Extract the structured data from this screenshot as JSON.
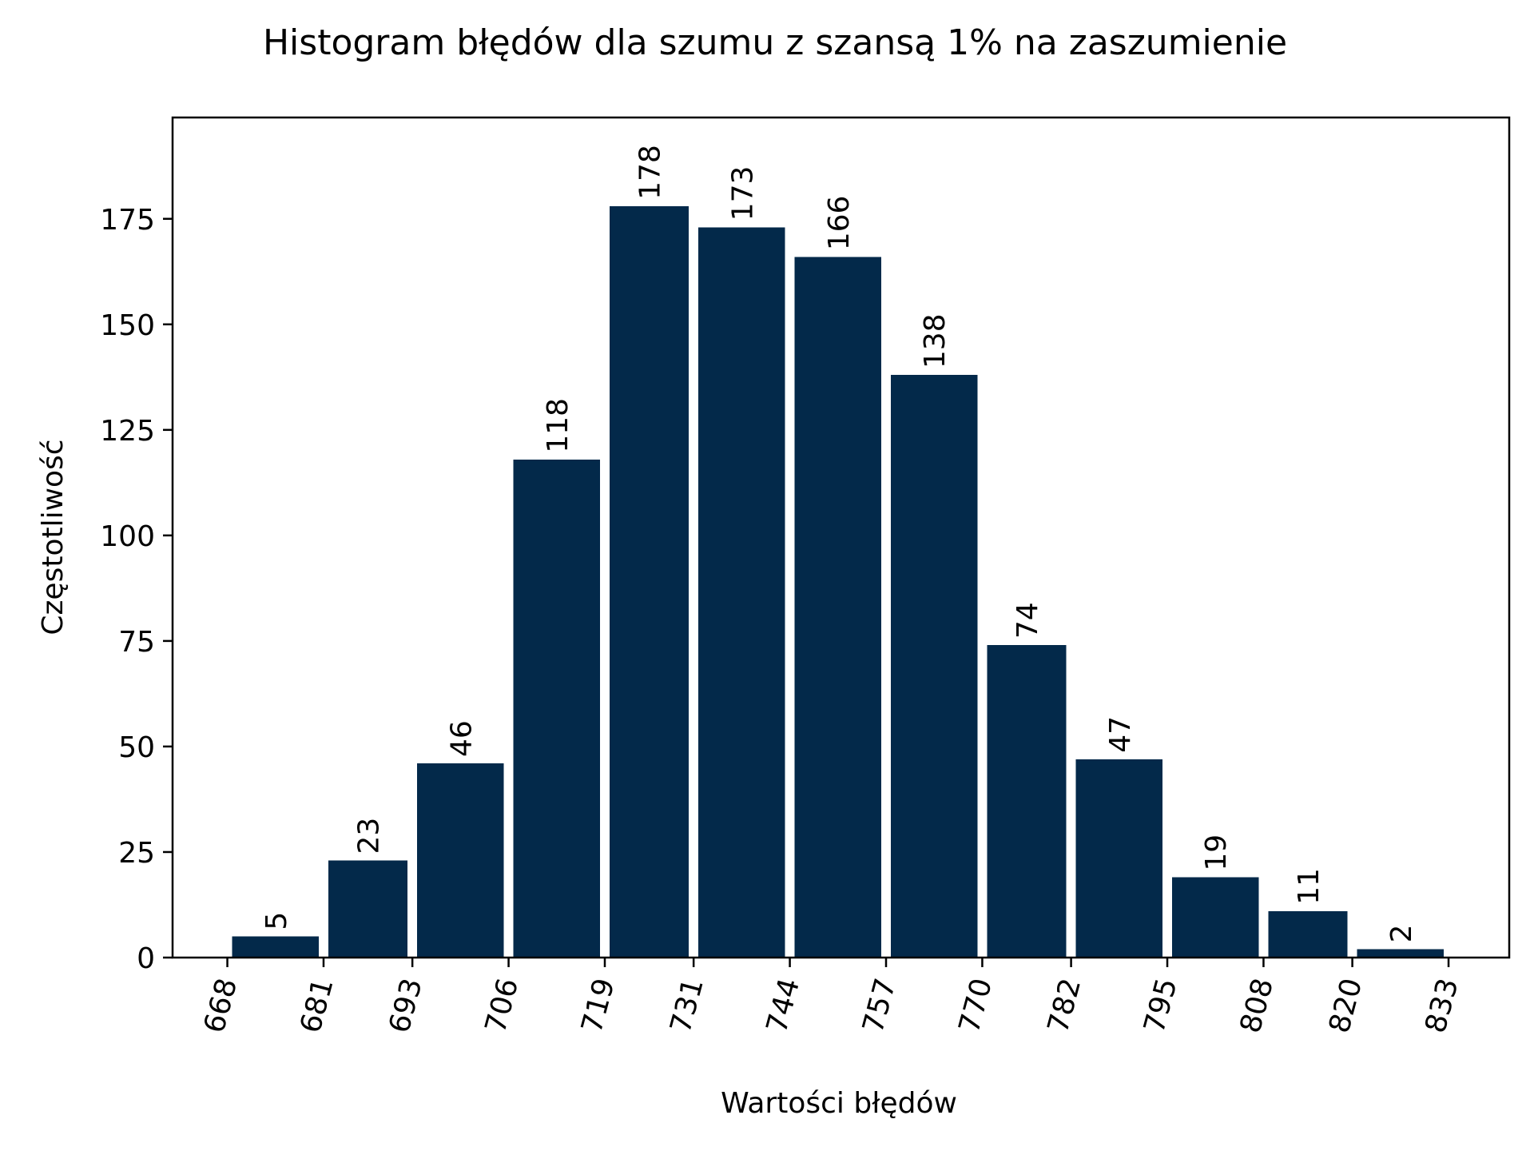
{
  "chart_data": {
    "type": "bar",
    "title": "Histogram błędów dla szumu z szansą 1% na zaszumienie",
    "xlabel": "Wartości błędów",
    "ylabel": "Częstotliwość",
    "bin_edges": [
      668,
      681,
      693,
      706,
      719,
      731,
      744,
      757,
      770,
      782,
      795,
      808,
      820,
      833
    ],
    "x_tick_labels": [
      "668",
      "681",
      "693",
      "706",
      "719",
      "731",
      "744",
      "757",
      "770",
      "782",
      "795",
      "808",
      "820",
      "833"
    ],
    "values": [
      5,
      23,
      46,
      118,
      178,
      173,
      166,
      138,
      74,
      47,
      19,
      11,
      2
    ],
    "y_ticks": [
      0,
      25,
      50,
      75,
      100,
      125,
      150,
      175
    ],
    "ylim": [
      0,
      199
    ],
    "xlim": [
      660.6,
      841.2
    ],
    "bar_color": "#03294a",
    "grid": false,
    "legend": "none"
  }
}
